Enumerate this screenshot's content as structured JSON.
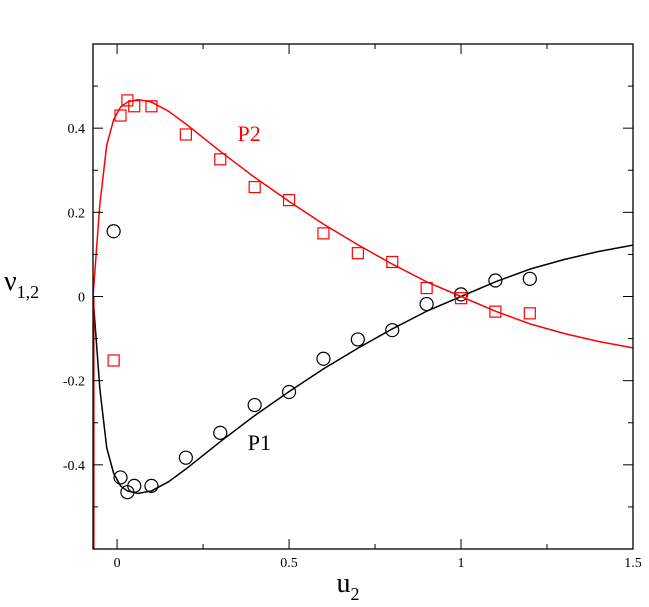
{
  "chart_data": {
    "type": "scatter",
    "xlabel_main": "u",
    "xlabel_sub": "2",
    "ylabel_main": "ν",
    "ylabel_sub": "1,2",
    "xlim": [
      -0.07,
      1.5
    ],
    "ylim": [
      -0.6,
      0.6
    ],
    "x_ticks": [
      0,
      0.5,
      1,
      1.5
    ],
    "x_tick_labels": [
      "0",
      "0.5",
      "1",
      "1.5"
    ],
    "y_ticks": [
      -0.4,
      -0.2,
      0,
      0.2,
      0.4
    ],
    "y_tick_labels": [
      "-0.4",
      "-0.2",
      "0",
      "0.2",
      "0.4"
    ],
    "grid": false,
    "legend": "none",
    "series": [
      {
        "name": "P1",
        "color": "#000000",
        "marker": "circle",
        "points": [
          {
            "x": -0.01,
            "y": 0.155
          },
          {
            "x": 0.01,
            "y": -0.43
          },
          {
            "x": 0.03,
            "y": -0.465
          },
          {
            "x": 0.05,
            "y": -0.45
          },
          {
            "x": 0.1,
            "y": -0.45
          },
          {
            "x": 0.2,
            "y": -0.383
          },
          {
            "x": 0.3,
            "y": -0.324
          },
          {
            "x": 0.4,
            "y": -0.258
          },
          {
            "x": 0.5,
            "y": -0.227
          },
          {
            "x": 0.6,
            "y": -0.148
          },
          {
            "x": 0.7,
            "y": -0.102
          },
          {
            "x": 0.8,
            "y": -0.08
          },
          {
            "x": 0.9,
            "y": -0.018
          },
          {
            "x": 1.0,
            "y": 0.005
          },
          {
            "x": 1.1,
            "y": 0.038
          },
          {
            "x": 1.2,
            "y": 0.042
          }
        ],
        "curve": [
          {
            "x": -0.07,
            "y": 0.0
          },
          {
            "x": -0.05,
            "y": -0.22
          },
          {
            "x": -0.03,
            "y": -0.36
          },
          {
            "x": -0.01,
            "y": -0.42
          },
          {
            "x": 0.01,
            "y": -0.45
          },
          {
            "x": 0.03,
            "y": -0.462
          },
          {
            "x": 0.06,
            "y": -0.468
          },
          {
            "x": 0.1,
            "y": -0.462
          },
          {
            "x": 0.15,
            "y": -0.44
          },
          {
            "x": 0.2,
            "y": -0.41
          },
          {
            "x": 0.3,
            "y": -0.345
          },
          {
            "x": 0.4,
            "y": -0.283
          },
          {
            "x": 0.5,
            "y": -0.226
          },
          {
            "x": 0.6,
            "y": -0.172
          },
          {
            "x": 0.7,
            "y": -0.123
          },
          {
            "x": 0.8,
            "y": -0.077
          },
          {
            "x": 0.9,
            "y": -0.035
          },
          {
            "x": 1.0,
            "y": 0.0
          },
          {
            "x": 1.1,
            "y": 0.035
          },
          {
            "x": 1.2,
            "y": 0.065
          },
          {
            "x": 1.3,
            "y": 0.088
          },
          {
            "x": 1.4,
            "y": 0.107
          },
          {
            "x": 1.5,
            "y": 0.122
          }
        ]
      },
      {
        "name": "P2",
        "color": "#ff0000",
        "marker": "square",
        "points": [
          {
            "x": -0.01,
            "y": -0.152
          },
          {
            "x": 0.01,
            "y": 0.43
          },
          {
            "x": 0.03,
            "y": 0.466
          },
          {
            "x": 0.05,
            "y": 0.452
          },
          {
            "x": 0.1,
            "y": 0.452
          },
          {
            "x": 0.2,
            "y": 0.385
          },
          {
            "x": 0.3,
            "y": 0.326
          },
          {
            "x": 0.4,
            "y": 0.26
          },
          {
            "x": 0.5,
            "y": 0.229
          },
          {
            "x": 0.6,
            "y": 0.15
          },
          {
            "x": 0.7,
            "y": 0.103
          },
          {
            "x": 0.8,
            "y": 0.082
          },
          {
            "x": 0.9,
            "y": 0.02
          },
          {
            "x": 1.0,
            "y": -0.004
          },
          {
            "x": 1.1,
            "y": -0.036
          },
          {
            "x": 1.2,
            "y": -0.04
          }
        ],
        "curve": [
          {
            "x": -0.07,
            "y": 0.0
          },
          {
            "x": -0.05,
            "y": 0.22
          },
          {
            "x": -0.03,
            "y": 0.36
          },
          {
            "x": -0.01,
            "y": 0.42
          },
          {
            "x": 0.01,
            "y": 0.45
          },
          {
            "x": 0.03,
            "y": 0.462
          },
          {
            "x": 0.06,
            "y": 0.468
          },
          {
            "x": 0.1,
            "y": 0.462
          },
          {
            "x": 0.15,
            "y": 0.44
          },
          {
            "x": 0.2,
            "y": 0.41
          },
          {
            "x": 0.3,
            "y": 0.345
          },
          {
            "x": 0.4,
            "y": 0.283
          },
          {
            "x": 0.5,
            "y": 0.226
          },
          {
            "x": 0.6,
            "y": 0.172
          },
          {
            "x": 0.7,
            "y": 0.123
          },
          {
            "x": 0.8,
            "y": 0.077
          },
          {
            "x": 0.9,
            "y": 0.035
          },
          {
            "x": 1.0,
            "y": 0.0
          },
          {
            "x": 1.1,
            "y": -0.035
          },
          {
            "x": 1.2,
            "y": -0.065
          },
          {
            "x": 1.3,
            "y": -0.088
          },
          {
            "x": 1.4,
            "y": -0.107
          },
          {
            "x": 1.5,
            "y": -0.122
          }
        ]
      }
    ],
    "annotations": [
      {
        "text": "P2",
        "x": 0.35,
        "y": 0.37,
        "color": "#ff0000"
      },
      {
        "text": "P1",
        "x": 0.38,
        "y": -0.365,
        "color": "#000000"
      }
    ]
  }
}
